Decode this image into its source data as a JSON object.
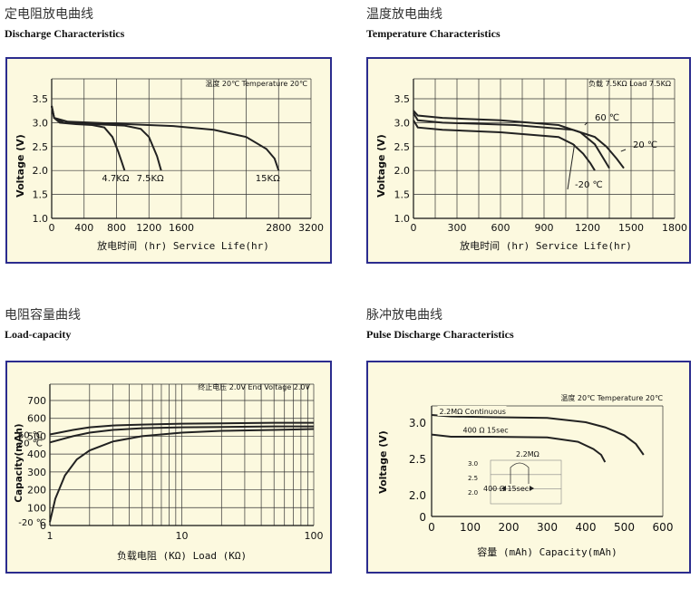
{
  "titles": [
    {
      "cn": "定电阻放电曲线",
      "en": "Discharge Characteristics"
    },
    {
      "cn": "温度放电曲线",
      "en": "Temperature Characteristics"
    },
    {
      "cn": "电阻容量曲线",
      "en": "Load-capacity"
    },
    {
      "cn": "脉冲放电曲线",
      "en": "Pulse Discharge Characteristics"
    }
  ],
  "chart_data": [
    {
      "type": "line",
      "note": "温度 20℃  Temperature 20℃",
      "xlabel": "放电时间 (hr) Service Life(hr)",
      "ylabel": "Voltage (V)",
      "xlim": [
        0,
        3200
      ],
      "ylim": [
        1.0,
        3.5
      ],
      "xticks": [
        "0",
        "400",
        "800",
        "1200",
        "1600",
        "2800",
        "3200"
      ],
      "yticks": [
        "1.0",
        "1.5",
        "2.0",
        "2.5",
        "3.0",
        "3.5"
      ],
      "series": [
        {
          "name": "4.7KΩ",
          "x": [
            0,
            30,
            100,
            300,
            500,
            650,
            750,
            820,
            870,
            900
          ],
          "y": [
            3.35,
            3.1,
            3.0,
            2.97,
            2.95,
            2.9,
            2.7,
            2.4,
            2.15,
            2.0
          ]
        },
        {
          "name": "7.5KΩ",
          "x": [
            0,
            30,
            150,
            500,
            900,
            1100,
            1200,
            1300,
            1350
          ],
          "y": [
            3.35,
            3.1,
            3.0,
            2.97,
            2.94,
            2.87,
            2.7,
            2.3,
            2.0
          ]
        },
        {
          "name": "15KΩ",
          "x": [
            0,
            30,
            200,
            800,
            1500,
            2000,
            2400,
            2650,
            2750,
            2800
          ],
          "y": [
            3.35,
            3.1,
            3.02,
            2.98,
            2.93,
            2.85,
            2.7,
            2.45,
            2.25,
            2.0
          ]
        }
      ]
    },
    {
      "type": "line",
      "note": "负载 7.5KΩ  Load 7.5KΩ",
      "xlabel": "放电时间 (hr) Service Life(hr)",
      "ylabel": "Voltage (V)",
      "xlim": [
        0,
        1800
      ],
      "ylim": [
        1.0,
        3.5
      ],
      "xticks": [
        "0",
        "300",
        "600",
        "900",
        "1200",
        "1500",
        "1800"
      ],
      "yticks": [
        "1.0",
        "1.5",
        "2.0",
        "2.5",
        "3.0",
        "3.5"
      ],
      "series": [
        {
          "name": "60 ℃",
          "x": [
            0,
            30,
            200,
            600,
            1000,
            1150,
            1250,
            1310,
            1350
          ],
          "y": [
            3.25,
            3.15,
            3.1,
            3.05,
            2.95,
            2.8,
            2.55,
            2.25,
            2.05
          ]
        },
        {
          "name": "20 ℃",
          "x": [
            0,
            30,
            200,
            700,
            1100,
            1250,
            1330,
            1400,
            1450
          ],
          "y": [
            3.2,
            3.05,
            3.0,
            2.95,
            2.85,
            2.7,
            2.5,
            2.25,
            2.05
          ]
        },
        {
          "name": "-20 ℃",
          "x": [
            0,
            30,
            200,
            600,
            1000,
            1100,
            1170,
            1220,
            1250
          ],
          "y": [
            3.05,
            2.9,
            2.85,
            2.8,
            2.7,
            2.55,
            2.35,
            2.15,
            2.0
          ]
        }
      ]
    },
    {
      "type": "line",
      "note": "终止电压 2.0V  End Voltage 2.0V",
      "xlabel": "负载电阻 (KΩ) Load (KΩ)",
      "ylabel": "Capacity(mAh)",
      "xscale": "log",
      "xlim": [
        1,
        100
      ],
      "ylim": [
        0,
        700
      ],
      "xticks": [
        "1",
        "10",
        "100"
      ],
      "yticks": [
        "0",
        "100",
        "200",
        "300",
        "400",
        "500",
        "600",
        "700"
      ],
      "series": [
        {
          "name": "60 ℃",
          "x": [
            1,
            1.5,
            2,
            3,
            5,
            10,
            20,
            50,
            100
          ],
          "y": [
            510,
            535,
            550,
            560,
            565,
            570,
            572,
            575,
            575
          ]
        },
        {
          "name": "20 ℃",
          "x": [
            1,
            1.5,
            2,
            3,
            5,
            10,
            20,
            50,
            100
          ],
          "y": [
            465,
            500,
            520,
            535,
            545,
            550,
            552,
            555,
            555
          ]
        },
        {
          "name": "-20 ℃",
          "x": [
            1,
            1.1,
            1.3,
            1.6,
            2,
            3,
            5,
            10,
            20,
            50,
            100
          ],
          "y": [
            20,
            150,
            280,
            370,
            420,
            470,
            500,
            520,
            530,
            535,
            540
          ]
        }
      ]
    },
    {
      "type": "line",
      "note": "温度 20℃ Temperature 20℃",
      "xlabel": "容量 (mAh) Capacity(mAh)",
      "ylabel": "Voltage (V)",
      "xlim": [
        0,
        600
      ],
      "xticks": [
        "0",
        "100",
        "200",
        "300",
        "400",
        "500",
        "600"
      ],
      "yticks": [
        "0",
        "2.0",
        "2.5",
        "3.0"
      ],
      "series": [
        {
          "name": "2.2MΩ Continuous",
          "x": [
            0,
            50,
            150,
            300,
            400,
            450,
            500,
            530,
            550
          ],
          "y": [
            3.1,
            3.08,
            3.07,
            3.06,
            3.0,
            2.93,
            2.82,
            2.7,
            2.55
          ]
        },
        {
          "name": "400 Ω 15sec",
          "x": [
            0,
            50,
            150,
            300,
            380,
            420,
            440,
            450
          ],
          "y": [
            2.83,
            2.8,
            2.8,
            2.79,
            2.73,
            2.63,
            2.55,
            2.45
          ]
        }
      ],
      "inset": {
        "yticks": [
          "3.0",
          "2.5",
          "2.0"
        ],
        "labels": [
          "2.2MΩ",
          "400 Ω 15sec"
        ]
      }
    }
  ]
}
